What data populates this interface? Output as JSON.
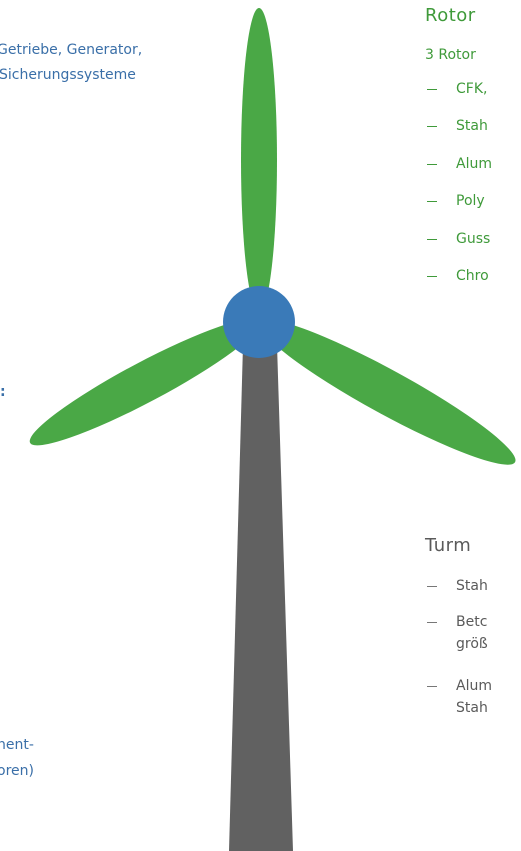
{
  "left_texts": {
    "nacelle": [
      "Getriebe, Generator,",
      "Sicherungssysteme"
    ],
    "colon": ":",
    "bottom": [
      "nent-",
      "oren)"
    ]
  },
  "rotor": {
    "title": "Rotor",
    "subtitle": "3 Rotor",
    "items": [
      "CFK,",
      "Stah",
      "Alum",
      "Poly",
      "Guss",
      "Chro"
    ]
  },
  "turm": {
    "title": "Turm",
    "items": [
      [
        "Stah"
      ],
      [
        "Betc",
        "größ"
      ],
      [
        "Alum",
        "Stah"
      ]
    ]
  }
}
